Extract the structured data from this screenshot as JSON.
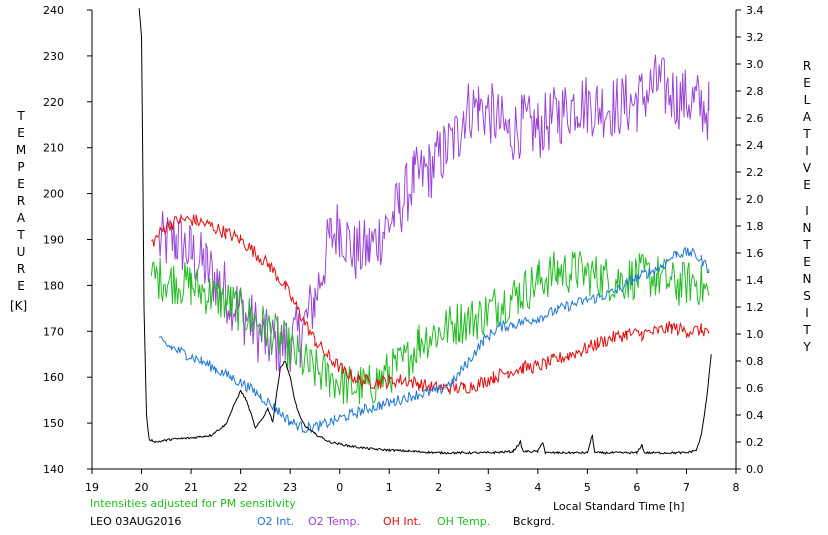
{
  "chart_data": {
    "type": "line",
    "left_axis_label_letters": [
      "T",
      "E",
      "M",
      "P",
      "E",
      "R",
      "A",
      "T",
      "U",
      "R",
      "E"
    ],
    "left_axis_unit": "[K]",
    "right_axis_label_letters_1": [
      "R",
      "E",
      "L",
      "A",
      "T",
      "I",
      "V",
      "E"
    ],
    "right_axis_label_letters_2": [
      "I",
      "N",
      "T",
      "E",
      "N",
      "S",
      "I",
      "T",
      "Y"
    ],
    "xlabel": "Local Standard Time [h]",
    "x_axis": {
      "min": 19,
      "max": 32,
      "tick_labels": [
        "19",
        "20",
        "21",
        "22",
        "23",
        "0",
        "1",
        "2",
        "3",
        "4",
        "5",
        "6",
        "7",
        "8"
      ]
    },
    "y_left": {
      "min": 140,
      "max": 240,
      "tick_labels": [
        "140",
        "150",
        "160",
        "170",
        "180",
        "190",
        "200",
        "210",
        "220",
        "230",
        "240"
      ]
    },
    "y_right": {
      "min": 0,
      "max": 3.4,
      "tick_labels": [
        "0.0",
        "0.2",
        "0.4",
        "0.6",
        "0.8",
        "1.0",
        "1.2",
        "1.4",
        "1.6",
        "1.8",
        "2.0",
        "2.2",
        "2.4",
        "2.6",
        "2.8",
        "3.0",
        "3.2",
        "3.4"
      ]
    },
    "note": "Intensities adjusted for PM sensitivity",
    "station": "LEO 03AUG2016",
    "colors": {
      "O2 Int.": "#1f78d4",
      "O2 Temp.": "#9b45d6",
      "OH Int.": "#e01010",
      "OH Temp.": "#22bb22",
      "Bckgrd.": "#000000"
    },
    "series": [
      {
        "name": "O2 Temp.",
        "axis": "left",
        "color": "#9b45d6",
        "noise": 7,
        "points": [
          [
            20.35,
            189
          ],
          [
            20.7,
            190
          ],
          [
            21.0,
            187
          ],
          [
            21.3,
            184
          ],
          [
            21.6,
            180
          ],
          [
            21.9,
            176
          ],
          [
            22.2,
            172
          ],
          [
            22.5,
            168
          ],
          [
            22.8,
            167
          ],
          [
            23.2,
            169
          ],
          [
            23.5,
            177
          ],
          [
            23.8,
            190
          ],
          [
            24.0,
            193
          ],
          [
            24.3,
            187
          ],
          [
            24.6,
            188
          ],
          [
            24.9,
            192
          ],
          [
            25.2,
            197
          ],
          [
            25.5,
            203
          ],
          [
            25.8,
            205
          ],
          [
            26.1,
            209
          ],
          [
            26.4,
            213
          ],
          [
            26.5,
            218
          ],
          [
            26.8,
            219
          ],
          [
            27.1,
            217
          ],
          [
            27.4,
            213
          ],
          [
            27.7,
            215
          ],
          [
            28.0,
            214
          ],
          [
            28.4,
            217
          ],
          [
            28.8,
            220
          ],
          [
            29.2,
            219
          ],
          [
            29.6,
            219
          ],
          [
            30.0,
            220
          ],
          [
            30.4,
            224
          ],
          [
            30.8,
            221
          ],
          [
            31.2,
            220
          ],
          [
            31.45,
            218
          ]
        ]
      },
      {
        "name": "OH Temp.",
        "axis": "left",
        "color": "#22bb22",
        "noise": 5,
        "points": [
          [
            20.2,
            182
          ],
          [
            20.6,
            181
          ],
          [
            21.0,
            180
          ],
          [
            21.4,
            178
          ],
          [
            21.8,
            176
          ],
          [
            22.2,
            173
          ],
          [
            22.6,
            170
          ],
          [
            23.0,
            166
          ],
          [
            23.4,
            162
          ],
          [
            23.8,
            160
          ],
          [
            24.2,
            158
          ],
          [
            24.6,
            158
          ],
          [
            25.0,
            161
          ],
          [
            25.4,
            164
          ],
          [
            25.6,
            168
          ],
          [
            26.0,
            170
          ],
          [
            26.4,
            172
          ],
          [
            26.8,
            173
          ],
          [
            27.2,
            176
          ],
          [
            27.6,
            178
          ],
          [
            28.0,
            181
          ],
          [
            28.4,
            183
          ],
          [
            28.8,
            183
          ],
          [
            29.2,
            182
          ],
          [
            29.6,
            181
          ],
          [
            30.0,
            182
          ],
          [
            30.4,
            182
          ],
          [
            30.8,
            180
          ],
          [
            31.2,
            181
          ],
          [
            31.45,
            178
          ]
        ]
      },
      {
        "name": "OH Int.",
        "axis": "right",
        "color": "#e01010",
        "noise": 0.05,
        "points": [
          [
            20.2,
            1.67
          ],
          [
            20.5,
            1.8
          ],
          [
            20.8,
            1.85
          ],
          [
            21.1,
            1.84
          ],
          [
            21.4,
            1.8
          ],
          [
            21.7,
            1.75
          ],
          [
            22.0,
            1.7
          ],
          [
            22.3,
            1.6
          ],
          [
            22.6,
            1.5
          ],
          [
            22.9,
            1.35
          ],
          [
            23.2,
            1.15
          ],
          [
            23.5,
            0.95
          ],
          [
            23.8,
            0.82
          ],
          [
            24.1,
            0.72
          ],
          [
            24.4,
            0.66
          ],
          [
            24.7,
            0.64
          ],
          [
            25.0,
            0.65
          ],
          [
            25.3,
            0.66
          ],
          [
            25.6,
            0.63
          ],
          [
            25.9,
            0.6
          ],
          [
            26.2,
            0.6
          ],
          [
            26.5,
            0.6
          ],
          [
            26.8,
            0.63
          ],
          [
            27.1,
            0.68
          ],
          [
            27.4,
            0.72
          ],
          [
            27.7,
            0.75
          ],
          [
            28.0,
            0.76
          ],
          [
            28.3,
            0.8
          ],
          [
            28.6,
            0.84
          ],
          [
            28.9,
            0.88
          ],
          [
            29.2,
            0.93
          ],
          [
            29.5,
            0.97
          ],
          [
            29.8,
            1.0
          ],
          [
            30.1,
            1.0
          ],
          [
            30.4,
            1.02
          ],
          [
            30.7,
            1.05
          ],
          [
            31.0,
            1.02
          ],
          [
            31.3,
            1.03
          ],
          [
            31.45,
            1.02
          ]
        ]
      },
      {
        "name": "O2 Int.",
        "axis": "right",
        "color": "#1f78d4",
        "noise": 0.04,
        "points": [
          [
            20.35,
            0.95
          ],
          [
            20.6,
            0.9
          ],
          [
            20.9,
            0.85
          ],
          [
            21.2,
            0.8
          ],
          [
            21.5,
            0.74
          ],
          [
            21.8,
            0.68
          ],
          [
            22.1,
            0.62
          ],
          [
            22.4,
            0.54
          ],
          [
            22.7,
            0.45
          ],
          [
            23.0,
            0.35
          ],
          [
            23.3,
            0.3
          ],
          [
            23.6,
            0.32
          ],
          [
            23.9,
            0.36
          ],
          [
            24.2,
            0.4
          ],
          [
            24.5,
            0.44
          ],
          [
            24.8,
            0.47
          ],
          [
            25.1,
            0.5
          ],
          [
            25.4,
            0.54
          ],
          [
            25.7,
            0.56
          ],
          [
            26.0,
            0.58
          ],
          [
            26.3,
            0.65
          ],
          [
            26.6,
            0.8
          ],
          [
            26.9,
            0.95
          ],
          [
            27.2,
            1.05
          ],
          [
            27.5,
            1.07
          ],
          [
            27.8,
            1.1
          ],
          [
            28.1,
            1.13
          ],
          [
            28.4,
            1.18
          ],
          [
            28.7,
            1.22
          ],
          [
            29.0,
            1.25
          ],
          [
            29.3,
            1.28
          ],
          [
            29.6,
            1.32
          ],
          [
            29.9,
            1.4
          ],
          [
            30.2,
            1.45
          ],
          [
            30.5,
            1.5
          ],
          [
            30.8,
            1.6
          ],
          [
            31.1,
            1.6
          ],
          [
            31.3,
            1.55
          ],
          [
            31.45,
            1.48
          ]
        ]
      },
      {
        "name": "Bckgrd.",
        "axis": "right",
        "color": "#000000",
        "noise": 0.008,
        "points": [
          [
            19.95,
            3.42
          ],
          [
            20.0,
            3.2
          ],
          [
            20.02,
            2.5
          ],
          [
            20.05,
            1.2
          ],
          [
            20.1,
            0.4
          ],
          [
            20.15,
            0.22
          ],
          [
            20.3,
            0.2
          ],
          [
            20.6,
            0.22
          ],
          [
            21.0,
            0.23
          ],
          [
            21.4,
            0.25
          ],
          [
            21.7,
            0.33
          ],
          [
            21.9,
            0.5
          ],
          [
            22.0,
            0.58
          ],
          [
            22.1,
            0.52
          ],
          [
            22.2,
            0.42
          ],
          [
            22.3,
            0.3
          ],
          [
            22.45,
            0.38
          ],
          [
            22.55,
            0.45
          ],
          [
            22.65,
            0.35
          ],
          [
            22.8,
            0.75
          ],
          [
            22.9,
            0.8
          ],
          [
            23.0,
            0.68
          ],
          [
            23.1,
            0.5
          ],
          [
            23.2,
            0.38
          ],
          [
            23.3,
            0.32
          ],
          [
            23.5,
            0.26
          ],
          [
            23.8,
            0.2
          ],
          [
            24.2,
            0.17
          ],
          [
            24.6,
            0.15
          ],
          [
            25.0,
            0.14
          ],
          [
            25.5,
            0.13
          ],
          [
            26.0,
            0.12
          ],
          [
            26.5,
            0.12
          ],
          [
            27.0,
            0.12
          ],
          [
            27.5,
            0.13
          ],
          [
            27.65,
            0.2
          ],
          [
            27.7,
            0.13
          ],
          [
            28.0,
            0.13
          ],
          [
            28.1,
            0.2
          ],
          [
            28.15,
            0.12
          ],
          [
            28.7,
            0.12
          ],
          [
            29.0,
            0.12
          ],
          [
            29.1,
            0.25
          ],
          [
            29.15,
            0.12
          ],
          [
            29.5,
            0.12
          ],
          [
            30.0,
            0.12
          ],
          [
            30.1,
            0.18
          ],
          [
            30.15,
            0.12
          ],
          [
            30.5,
            0.12
          ],
          [
            31.0,
            0.12
          ],
          [
            31.2,
            0.14
          ],
          [
            31.3,
            0.25
          ],
          [
            31.4,
            0.5
          ],
          [
            31.5,
            0.85
          ]
        ]
      }
    ]
  }
}
